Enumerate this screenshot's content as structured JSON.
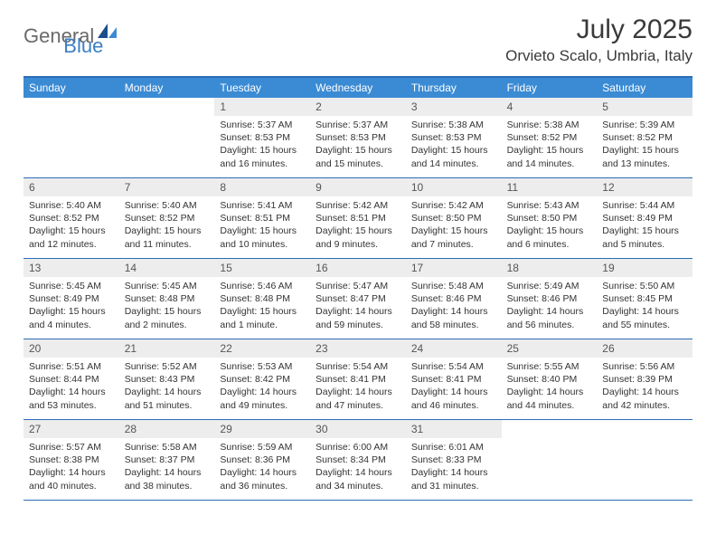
{
  "logo": {
    "part1": "General",
    "part2": "Blue"
  },
  "title": "July 2025",
  "location": "Orvieto Scalo, Umbria, Italy",
  "colors": {
    "header_bg": "#3b8bd4",
    "border": "#2a6db5",
    "daynum_bg": "#ededed",
    "logo_gray": "#6a6a6a",
    "logo_blue": "#3b7fc4"
  },
  "weekdays": [
    "Sunday",
    "Monday",
    "Tuesday",
    "Wednesday",
    "Thursday",
    "Friday",
    "Saturday"
  ],
  "weeks": [
    [
      {
        "empty": true
      },
      {
        "empty": true
      },
      {
        "num": "1",
        "sunrise": "Sunrise: 5:37 AM",
        "sunset": "Sunset: 8:53 PM",
        "daylight1": "Daylight: 15 hours",
        "daylight2": "and 16 minutes."
      },
      {
        "num": "2",
        "sunrise": "Sunrise: 5:37 AM",
        "sunset": "Sunset: 8:53 PM",
        "daylight1": "Daylight: 15 hours",
        "daylight2": "and 15 minutes."
      },
      {
        "num": "3",
        "sunrise": "Sunrise: 5:38 AM",
        "sunset": "Sunset: 8:53 PM",
        "daylight1": "Daylight: 15 hours",
        "daylight2": "and 14 minutes."
      },
      {
        "num": "4",
        "sunrise": "Sunrise: 5:38 AM",
        "sunset": "Sunset: 8:52 PM",
        "daylight1": "Daylight: 15 hours",
        "daylight2": "and 14 minutes."
      },
      {
        "num": "5",
        "sunrise": "Sunrise: 5:39 AM",
        "sunset": "Sunset: 8:52 PM",
        "daylight1": "Daylight: 15 hours",
        "daylight2": "and 13 minutes."
      }
    ],
    [
      {
        "num": "6",
        "sunrise": "Sunrise: 5:40 AM",
        "sunset": "Sunset: 8:52 PM",
        "daylight1": "Daylight: 15 hours",
        "daylight2": "and 12 minutes."
      },
      {
        "num": "7",
        "sunrise": "Sunrise: 5:40 AM",
        "sunset": "Sunset: 8:52 PM",
        "daylight1": "Daylight: 15 hours",
        "daylight2": "and 11 minutes."
      },
      {
        "num": "8",
        "sunrise": "Sunrise: 5:41 AM",
        "sunset": "Sunset: 8:51 PM",
        "daylight1": "Daylight: 15 hours",
        "daylight2": "and 10 minutes."
      },
      {
        "num": "9",
        "sunrise": "Sunrise: 5:42 AM",
        "sunset": "Sunset: 8:51 PM",
        "daylight1": "Daylight: 15 hours",
        "daylight2": "and 9 minutes."
      },
      {
        "num": "10",
        "sunrise": "Sunrise: 5:42 AM",
        "sunset": "Sunset: 8:50 PM",
        "daylight1": "Daylight: 15 hours",
        "daylight2": "and 7 minutes."
      },
      {
        "num": "11",
        "sunrise": "Sunrise: 5:43 AM",
        "sunset": "Sunset: 8:50 PM",
        "daylight1": "Daylight: 15 hours",
        "daylight2": "and 6 minutes."
      },
      {
        "num": "12",
        "sunrise": "Sunrise: 5:44 AM",
        "sunset": "Sunset: 8:49 PM",
        "daylight1": "Daylight: 15 hours",
        "daylight2": "and 5 minutes."
      }
    ],
    [
      {
        "num": "13",
        "sunrise": "Sunrise: 5:45 AM",
        "sunset": "Sunset: 8:49 PM",
        "daylight1": "Daylight: 15 hours",
        "daylight2": "and 4 minutes."
      },
      {
        "num": "14",
        "sunrise": "Sunrise: 5:45 AM",
        "sunset": "Sunset: 8:48 PM",
        "daylight1": "Daylight: 15 hours",
        "daylight2": "and 2 minutes."
      },
      {
        "num": "15",
        "sunrise": "Sunrise: 5:46 AM",
        "sunset": "Sunset: 8:48 PM",
        "daylight1": "Daylight: 15 hours",
        "daylight2": "and 1 minute."
      },
      {
        "num": "16",
        "sunrise": "Sunrise: 5:47 AM",
        "sunset": "Sunset: 8:47 PM",
        "daylight1": "Daylight: 14 hours",
        "daylight2": "and 59 minutes."
      },
      {
        "num": "17",
        "sunrise": "Sunrise: 5:48 AM",
        "sunset": "Sunset: 8:46 PM",
        "daylight1": "Daylight: 14 hours",
        "daylight2": "and 58 minutes."
      },
      {
        "num": "18",
        "sunrise": "Sunrise: 5:49 AM",
        "sunset": "Sunset: 8:46 PM",
        "daylight1": "Daylight: 14 hours",
        "daylight2": "and 56 minutes."
      },
      {
        "num": "19",
        "sunrise": "Sunrise: 5:50 AM",
        "sunset": "Sunset: 8:45 PM",
        "daylight1": "Daylight: 14 hours",
        "daylight2": "and 55 minutes."
      }
    ],
    [
      {
        "num": "20",
        "sunrise": "Sunrise: 5:51 AM",
        "sunset": "Sunset: 8:44 PM",
        "daylight1": "Daylight: 14 hours",
        "daylight2": "and 53 minutes."
      },
      {
        "num": "21",
        "sunrise": "Sunrise: 5:52 AM",
        "sunset": "Sunset: 8:43 PM",
        "daylight1": "Daylight: 14 hours",
        "daylight2": "and 51 minutes."
      },
      {
        "num": "22",
        "sunrise": "Sunrise: 5:53 AM",
        "sunset": "Sunset: 8:42 PM",
        "daylight1": "Daylight: 14 hours",
        "daylight2": "and 49 minutes."
      },
      {
        "num": "23",
        "sunrise": "Sunrise: 5:54 AM",
        "sunset": "Sunset: 8:41 PM",
        "daylight1": "Daylight: 14 hours",
        "daylight2": "and 47 minutes."
      },
      {
        "num": "24",
        "sunrise": "Sunrise: 5:54 AM",
        "sunset": "Sunset: 8:41 PM",
        "daylight1": "Daylight: 14 hours",
        "daylight2": "and 46 minutes."
      },
      {
        "num": "25",
        "sunrise": "Sunrise: 5:55 AM",
        "sunset": "Sunset: 8:40 PM",
        "daylight1": "Daylight: 14 hours",
        "daylight2": "and 44 minutes."
      },
      {
        "num": "26",
        "sunrise": "Sunrise: 5:56 AM",
        "sunset": "Sunset: 8:39 PM",
        "daylight1": "Daylight: 14 hours",
        "daylight2": "and 42 minutes."
      }
    ],
    [
      {
        "num": "27",
        "sunrise": "Sunrise: 5:57 AM",
        "sunset": "Sunset: 8:38 PM",
        "daylight1": "Daylight: 14 hours",
        "daylight2": "and 40 minutes."
      },
      {
        "num": "28",
        "sunrise": "Sunrise: 5:58 AM",
        "sunset": "Sunset: 8:37 PM",
        "daylight1": "Daylight: 14 hours",
        "daylight2": "and 38 minutes."
      },
      {
        "num": "29",
        "sunrise": "Sunrise: 5:59 AM",
        "sunset": "Sunset: 8:36 PM",
        "daylight1": "Daylight: 14 hours",
        "daylight2": "and 36 minutes."
      },
      {
        "num": "30",
        "sunrise": "Sunrise: 6:00 AM",
        "sunset": "Sunset: 8:34 PM",
        "daylight1": "Daylight: 14 hours",
        "daylight2": "and 34 minutes."
      },
      {
        "num": "31",
        "sunrise": "Sunrise: 6:01 AM",
        "sunset": "Sunset: 8:33 PM",
        "daylight1": "Daylight: 14 hours",
        "daylight2": "and 31 minutes."
      },
      {
        "empty": true
      },
      {
        "empty": true
      }
    ]
  ]
}
